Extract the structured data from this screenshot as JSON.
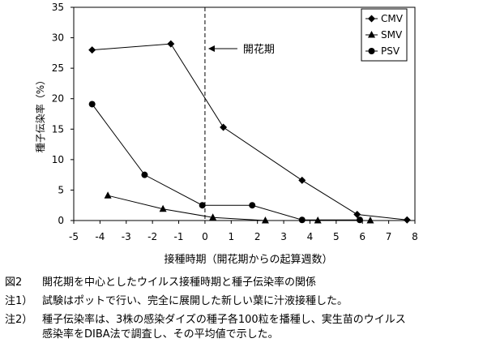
{
  "chart_data": {
    "type": "line",
    "title": "",
    "xlabel": "接種時期（開花期からの起算週数）",
    "ylabel": "種子伝染率（%）",
    "xlim": [
      -5,
      8
    ],
    "ylim": [
      0,
      35
    ],
    "x_ticks": [
      "-5",
      "-4",
      "-3",
      "-2",
      "-1",
      "0",
      "1",
      "2",
      "3",
      "4",
      "5",
      "6",
      "7",
      "8"
    ],
    "y_ticks": [
      "0",
      "5",
      "10",
      "15",
      "20",
      "25",
      "30",
      "35"
    ],
    "legend_position": "top-right",
    "grid": false,
    "annotation": "開花期",
    "annotation_x": 0,
    "series": [
      {
        "name": "CMV",
        "marker": "diamond",
        "points": [
          [
            -4.3,
            28.0
          ],
          [
            -1.3,
            29.0
          ],
          [
            0.7,
            15.3
          ],
          [
            3.7,
            6.6
          ],
          [
            5.8,
            1.0
          ],
          [
            7.7,
            0.1
          ]
        ]
      },
      {
        "name": "SMV",
        "marker": "triangle",
        "points": [
          [
            -3.7,
            4.1
          ],
          [
            -1.6,
            1.9
          ],
          [
            0.3,
            0.5
          ],
          [
            2.3,
            0.0
          ],
          [
            4.3,
            0.0
          ],
          [
            6.3,
            0.0
          ]
        ]
      },
      {
        "name": "PSV",
        "marker": "circle",
        "points": [
          [
            -4.3,
            19.1
          ],
          [
            -2.3,
            7.5
          ],
          [
            -0.1,
            2.5
          ],
          [
            1.8,
            2.5
          ],
          [
            3.7,
            0.1
          ],
          [
            5.9,
            0.1
          ]
        ]
      }
    ]
  },
  "captions": {
    "figure_num": "図2",
    "figure_title": "開花期を中心としたウイルス接種時期と種子伝染率の関係",
    "note1_num": "注1）",
    "note1_text": "試験はポットで行い、完全に展開した新しい葉に汁液接種した。",
    "note2_num": "注2）",
    "note2_text_line1": "種子伝染率は、3株の感染ダイズの種子各100粒を播種し、実生苗のウイルス",
    "note2_text_line2": "感染率をDIBA法で調査し、その平均値で示した。"
  }
}
